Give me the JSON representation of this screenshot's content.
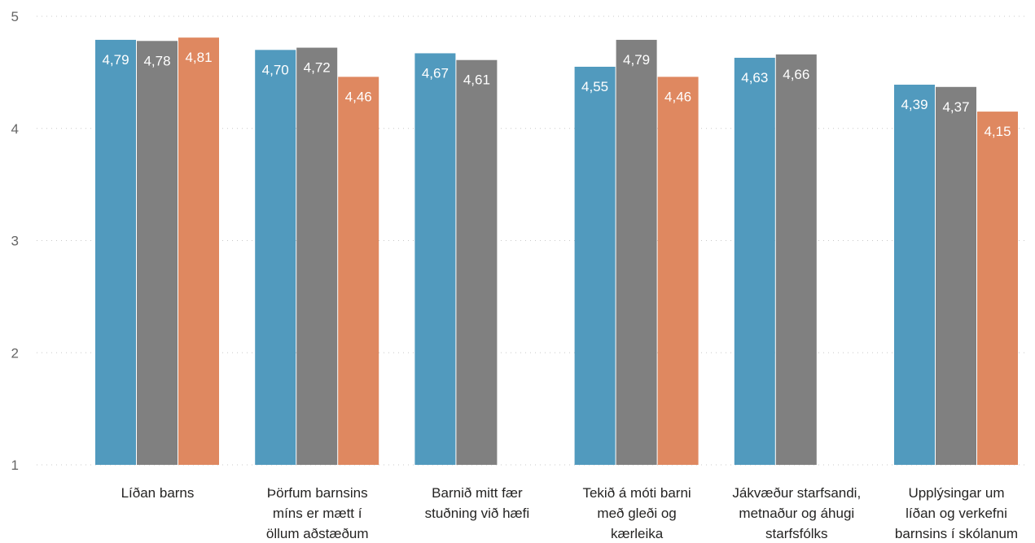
{
  "chart_data": {
    "type": "bar",
    "title": "",
    "xlabel": "",
    "ylabel": "",
    "ylim": [
      1,
      5
    ],
    "yticks": [
      1,
      2,
      3,
      4,
      5
    ],
    "grid": true,
    "legend": "none",
    "categories": [
      [
        "Líðan barns"
      ],
      [
        "Þörfum barnsins",
        "míns er mætt í",
        "öllum aðstæðum"
      ],
      [
        "Barnið mitt fær",
        "stuðning við hæfi"
      ],
      [
        "Tekið á móti barni",
        "með gleði og",
        "kærleika"
      ],
      [
        "Jákvæður starfsandi,",
        "metnaður og áhugi",
        "starfsfólks"
      ],
      [
        "Upplýsingar um",
        "líðan og verkefni",
        "barnsins í skólanum"
      ]
    ],
    "series": [
      {
        "color": "#519ABE",
        "values": [
          4.79,
          4.7,
          4.67,
          4.55,
          4.63,
          4.39
        ],
        "labels": [
          "4,79",
          "4,70",
          "4,67",
          "4,55",
          "4,63",
          "4,39"
        ]
      },
      {
        "color": "#808080",
        "values": [
          4.78,
          4.72,
          4.61,
          4.79,
          4.66,
          4.37
        ],
        "labels": [
          "4,78",
          "4,72",
          "4,61",
          "4,79",
          "4,66",
          "4,37"
        ]
      },
      {
        "color": "#DF8860",
        "values": [
          4.81,
          4.46,
          null,
          4.46,
          null,
          4.15
        ],
        "labels": [
          "4,81",
          "4,46",
          "",
          "4,46",
          "",
          "4,15"
        ]
      }
    ]
  }
}
